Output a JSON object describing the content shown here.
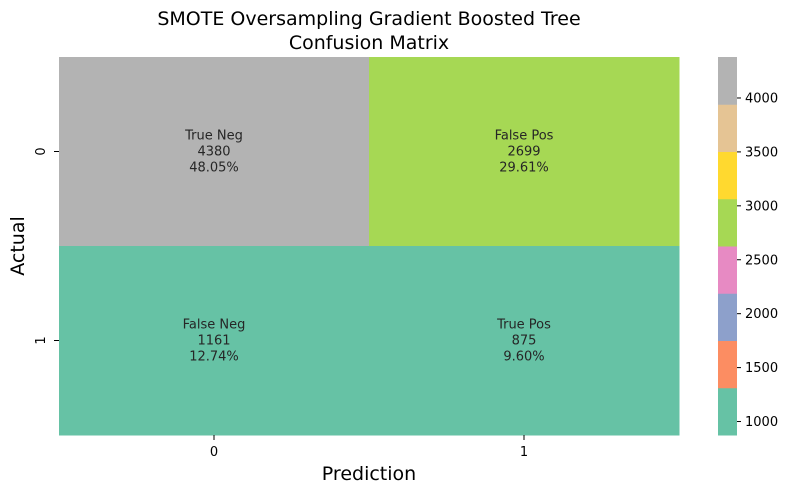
{
  "chart_data": {
    "type": "heatmap",
    "title_line1": "SMOTE Oversampling Gradient Boosted Tree",
    "title_line2": "Confusion Matrix",
    "xlabel": "Prediction",
    "ylabel": "Actual",
    "x_categories": [
      "0",
      "1"
    ],
    "y_categories": [
      "0",
      "1"
    ],
    "cells": [
      {
        "row": 0,
        "col": 0,
        "name": "True Neg",
        "count": 4380,
        "count_label": "4380",
        "percent": "48.05%",
        "color": "#b3b3b3"
      },
      {
        "row": 0,
        "col": 1,
        "name": "False Pos",
        "count": 2699,
        "count_label": "2699",
        "percent": "29.61%",
        "color": "#a6d854"
      },
      {
        "row": 1,
        "col": 0,
        "name": "False Neg",
        "count": 1161,
        "count_label": "1161",
        "percent": "12.74%",
        "color": "#66c2a5"
      },
      {
        "row": 1,
        "col": 1,
        "name": "True Pos",
        "count": 875,
        "count_label": "875",
        "percent": "9.60%",
        "color": "#66c2a5"
      }
    ],
    "colormap": "Set2",
    "colorbar": {
      "vmin": 875,
      "vmax": 4380,
      "colors": [
        "#66c2a5",
        "#fc8d62",
        "#8da0cb",
        "#e78ac3",
        "#a6d854",
        "#ffd92f",
        "#e5c494",
        "#b3b3b3"
      ],
      "ticks": [
        1000,
        1500,
        2000,
        2500,
        3000,
        3500,
        4000
      ],
      "tick_labels": [
        "1000",
        "1500",
        "2000",
        "2500",
        "3000",
        "3500",
        "4000"
      ]
    }
  }
}
